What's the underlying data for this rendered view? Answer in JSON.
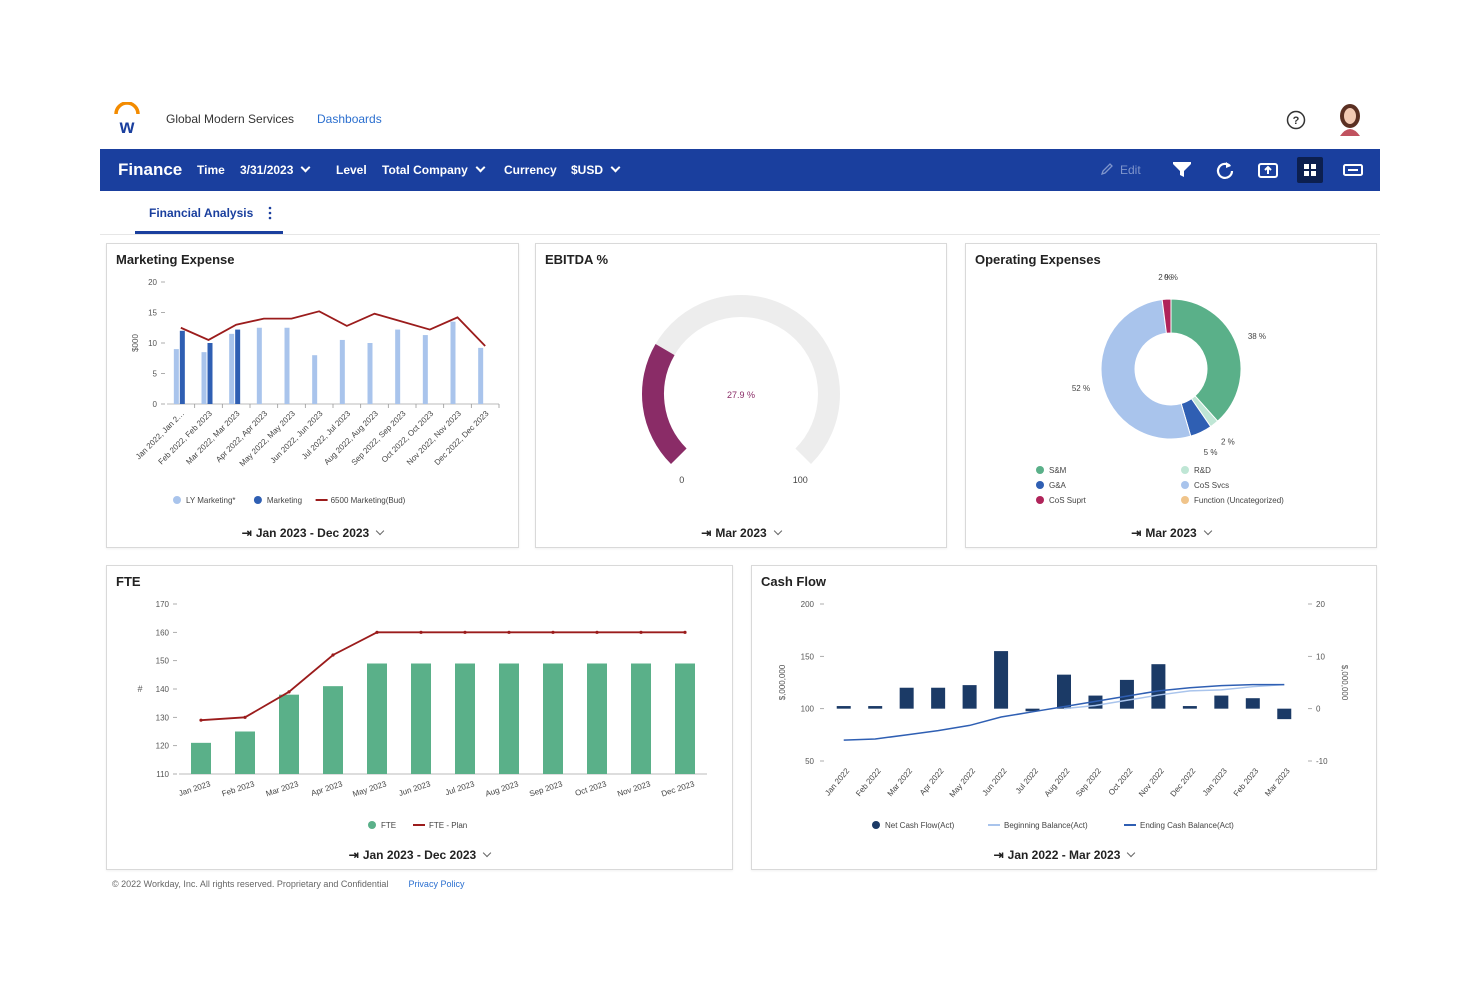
{
  "header": {
    "org_name": "Global Modern Services",
    "dashboards_link": "Dashboards"
  },
  "toolbar": {
    "title": "Finance",
    "time_label": "Time",
    "time_value": "3/31/2023",
    "level_label": "Level",
    "level_value": "Total Company",
    "currency_label": "Currency",
    "currency_value": "$USD",
    "edit_label": "Edit",
    "icons": [
      "edit-icon",
      "filter-icon",
      "refresh-icon",
      "export-icon",
      "grid-view-icon",
      "presentation-icon"
    ]
  },
  "tabs": [
    {
      "label": "Financial Analysis",
      "active": true
    }
  ],
  "colors": {
    "brand_blue": "#1a3f9e",
    "lt_blue": "#a9c4ec",
    "dk_blue": "#2f5fb3",
    "dark_red": "#9b1c1c",
    "green": "#5ab089",
    "navy": "#1b3a66",
    "gauge_purple": "#8a2c67"
  },
  "panels": {
    "marketing": {
      "title": "Marketing Expense",
      "period": "Jan 2023 - Dec 2023",
      "chart_data": {
        "type": "bar",
        "ylabel": "$000",
        "ylim": [
          0,
          20
        ],
        "yticks": [
          "20",
          "15",
          "10",
          "5",
          "0"
        ],
        "categories": [
          "Jan 2022, Jan 2…",
          "Feb 2022, Feb 2023",
          "Mar 2022, Mar 2023",
          "Apr 2022, Apr 2023",
          "May 2022, May 2023",
          "Jun 2022, Jun 2023",
          "Jul 2022, Jul 2023",
          "Aug 2022, Aug 2023",
          "Sep 2022, Sep 2023",
          "Oct 2022, Oct 2023",
          "Nov 2022, Nov 2023",
          "Dec 2022, Dec 2023"
        ],
        "series": [
          {
            "name": "LY Marketing*",
            "kind": "bar",
            "color": "#a9c4ec",
            "values": [
              9,
              8.5,
              11.5,
              12.5,
              12.5,
              8,
              10.5,
              10,
              12.2,
              11.3,
              13.5,
              9.2
            ]
          },
          {
            "name": "Marketing",
            "kind": "bar",
            "color": "#2f5fb3",
            "values": [
              12,
              10,
              12.2,
              null,
              null,
              null,
              null,
              null,
              null,
              null,
              null,
              null
            ]
          },
          {
            "name": "6500 Marketing(Bud)",
            "kind": "line",
            "color": "#9b1c1c",
            "values": [
              12.5,
              10.5,
              13,
              14,
              14,
              15.2,
              12.8,
              14.8,
              13.5,
              12.2,
              14.2,
              9.5
            ]
          }
        ]
      }
    },
    "ebitda": {
      "title": "EBITDA %",
      "period": "Mar 2023",
      "value_label": "27.9 %",
      "min_label": "0",
      "max_label": "100",
      "value": 27.9,
      "max": 100
    },
    "opex": {
      "title": "Operating Expenses",
      "period": "Mar 2023",
      "chart_data": {
        "type": "pie",
        "slices": [
          {
            "name": "S&M",
            "value": 38,
            "label": "38 %",
            "color": "#5ab089"
          },
          {
            "name": "R&D",
            "value": 2,
            "label": "2 %",
            "color": "#bfe6d5"
          },
          {
            "name": "G&A",
            "value": 5,
            "label": "5 %",
            "color": "#2f5fb3"
          },
          {
            "name": "CoS Svcs",
            "value": 52,
            "label": "52 %",
            "color": "#a9c4ec"
          },
          {
            "name": "CoS Suprt",
            "value": 2,
            "label": "2 %",
            "color": "#b0245a"
          },
          {
            "name": "Function (Uncategorized)",
            "value": 0,
            "label": "0 %",
            "color": "#f0c48a"
          }
        ]
      }
    },
    "fte": {
      "title": "FTE",
      "period": "Jan 2023 - Dec 2023",
      "chart_data": {
        "type": "bar",
        "ylabel": "#",
        "ylim": [
          110,
          170
        ],
        "yticks": [
          "170",
          "160",
          "150",
          "140",
          "130",
          "120",
          "110"
        ],
        "categories": [
          "Jan 2023",
          "Feb 2023",
          "Mar 2023",
          "Apr 2023",
          "May 2023",
          "Jun 2023",
          "Jul 2023",
          "Aug 2023",
          "Sep 2023",
          "Oct 2023",
          "Nov 2023",
          "Dec 2023"
        ],
        "series": [
          {
            "name": "FTE",
            "kind": "bar",
            "color": "#5ab089",
            "values": [
              121,
              125,
              138,
              141,
              149,
              149,
              149,
              149,
              149,
              149,
              149,
              149
            ]
          },
          {
            "name": "FTE - Plan",
            "kind": "line",
            "color": "#9b1c1c",
            "values": [
              129,
              130,
              139,
              152,
              160,
              160,
              160,
              160,
              160,
              160,
              160,
              160
            ]
          }
        ]
      }
    },
    "cashflow": {
      "title": "Cash Flow",
      "period": "Jan 2022 - Mar 2023",
      "chart_data": {
        "type": "bar",
        "ylabel": "$,000,000",
        "y2label": "$,000,000",
        "ylim": [
          50,
          200
        ],
        "y2lim": [
          -10,
          20
        ],
        "yticks": [
          "200",
          "150",
          "100",
          "50"
        ],
        "y2ticks": [
          "20",
          "10",
          "0",
          "-10"
        ],
        "categories": [
          "Jan 2022",
          "Feb 2022",
          "Mar 2022",
          "Apr 2022",
          "May 2022",
          "Jun 2022",
          "Jul 2022",
          "Aug 2022",
          "Sep 2022",
          "Oct 2022",
          "Nov 2022",
          "Dec 2022",
          "Jan 2023",
          "Feb 2023",
          "Mar 2023"
        ],
        "series": [
          {
            "name": "Net Cash Flow(Act)",
            "kind": "bar",
            "axis": "right",
            "color": "#1b3a66",
            "values": [
              0.5,
              0.5,
              4,
              4,
              4.5,
              11,
              -0.5,
              6.5,
              2.5,
              5.5,
              8.5,
              0.5,
              2.5,
              2,
              -2
            ]
          },
          {
            "name": "Beginning Balance(Act)",
            "kind": "line",
            "axis": "left",
            "color": "#a9c4ec",
            "values": [
              null,
              null,
              null,
              null,
              null,
              null,
              null,
              100,
              103,
              108,
              113,
              117,
              118,
              121,
              123
            ]
          },
          {
            "name": "Ending Cash Balance(Act)",
            "kind": "line",
            "axis": "left",
            "color": "#2f5fb3",
            "values": [
              70,
              71,
              75,
              79,
              84,
              92,
              97,
              102,
              107,
              112,
              117,
              120,
              122,
              123,
              123
            ]
          }
        ]
      }
    }
  },
  "footer": {
    "copyright": "© 2022 Workday, Inc. All rights reserved. Proprietary and Confidential",
    "privacy": "Privacy Policy"
  }
}
